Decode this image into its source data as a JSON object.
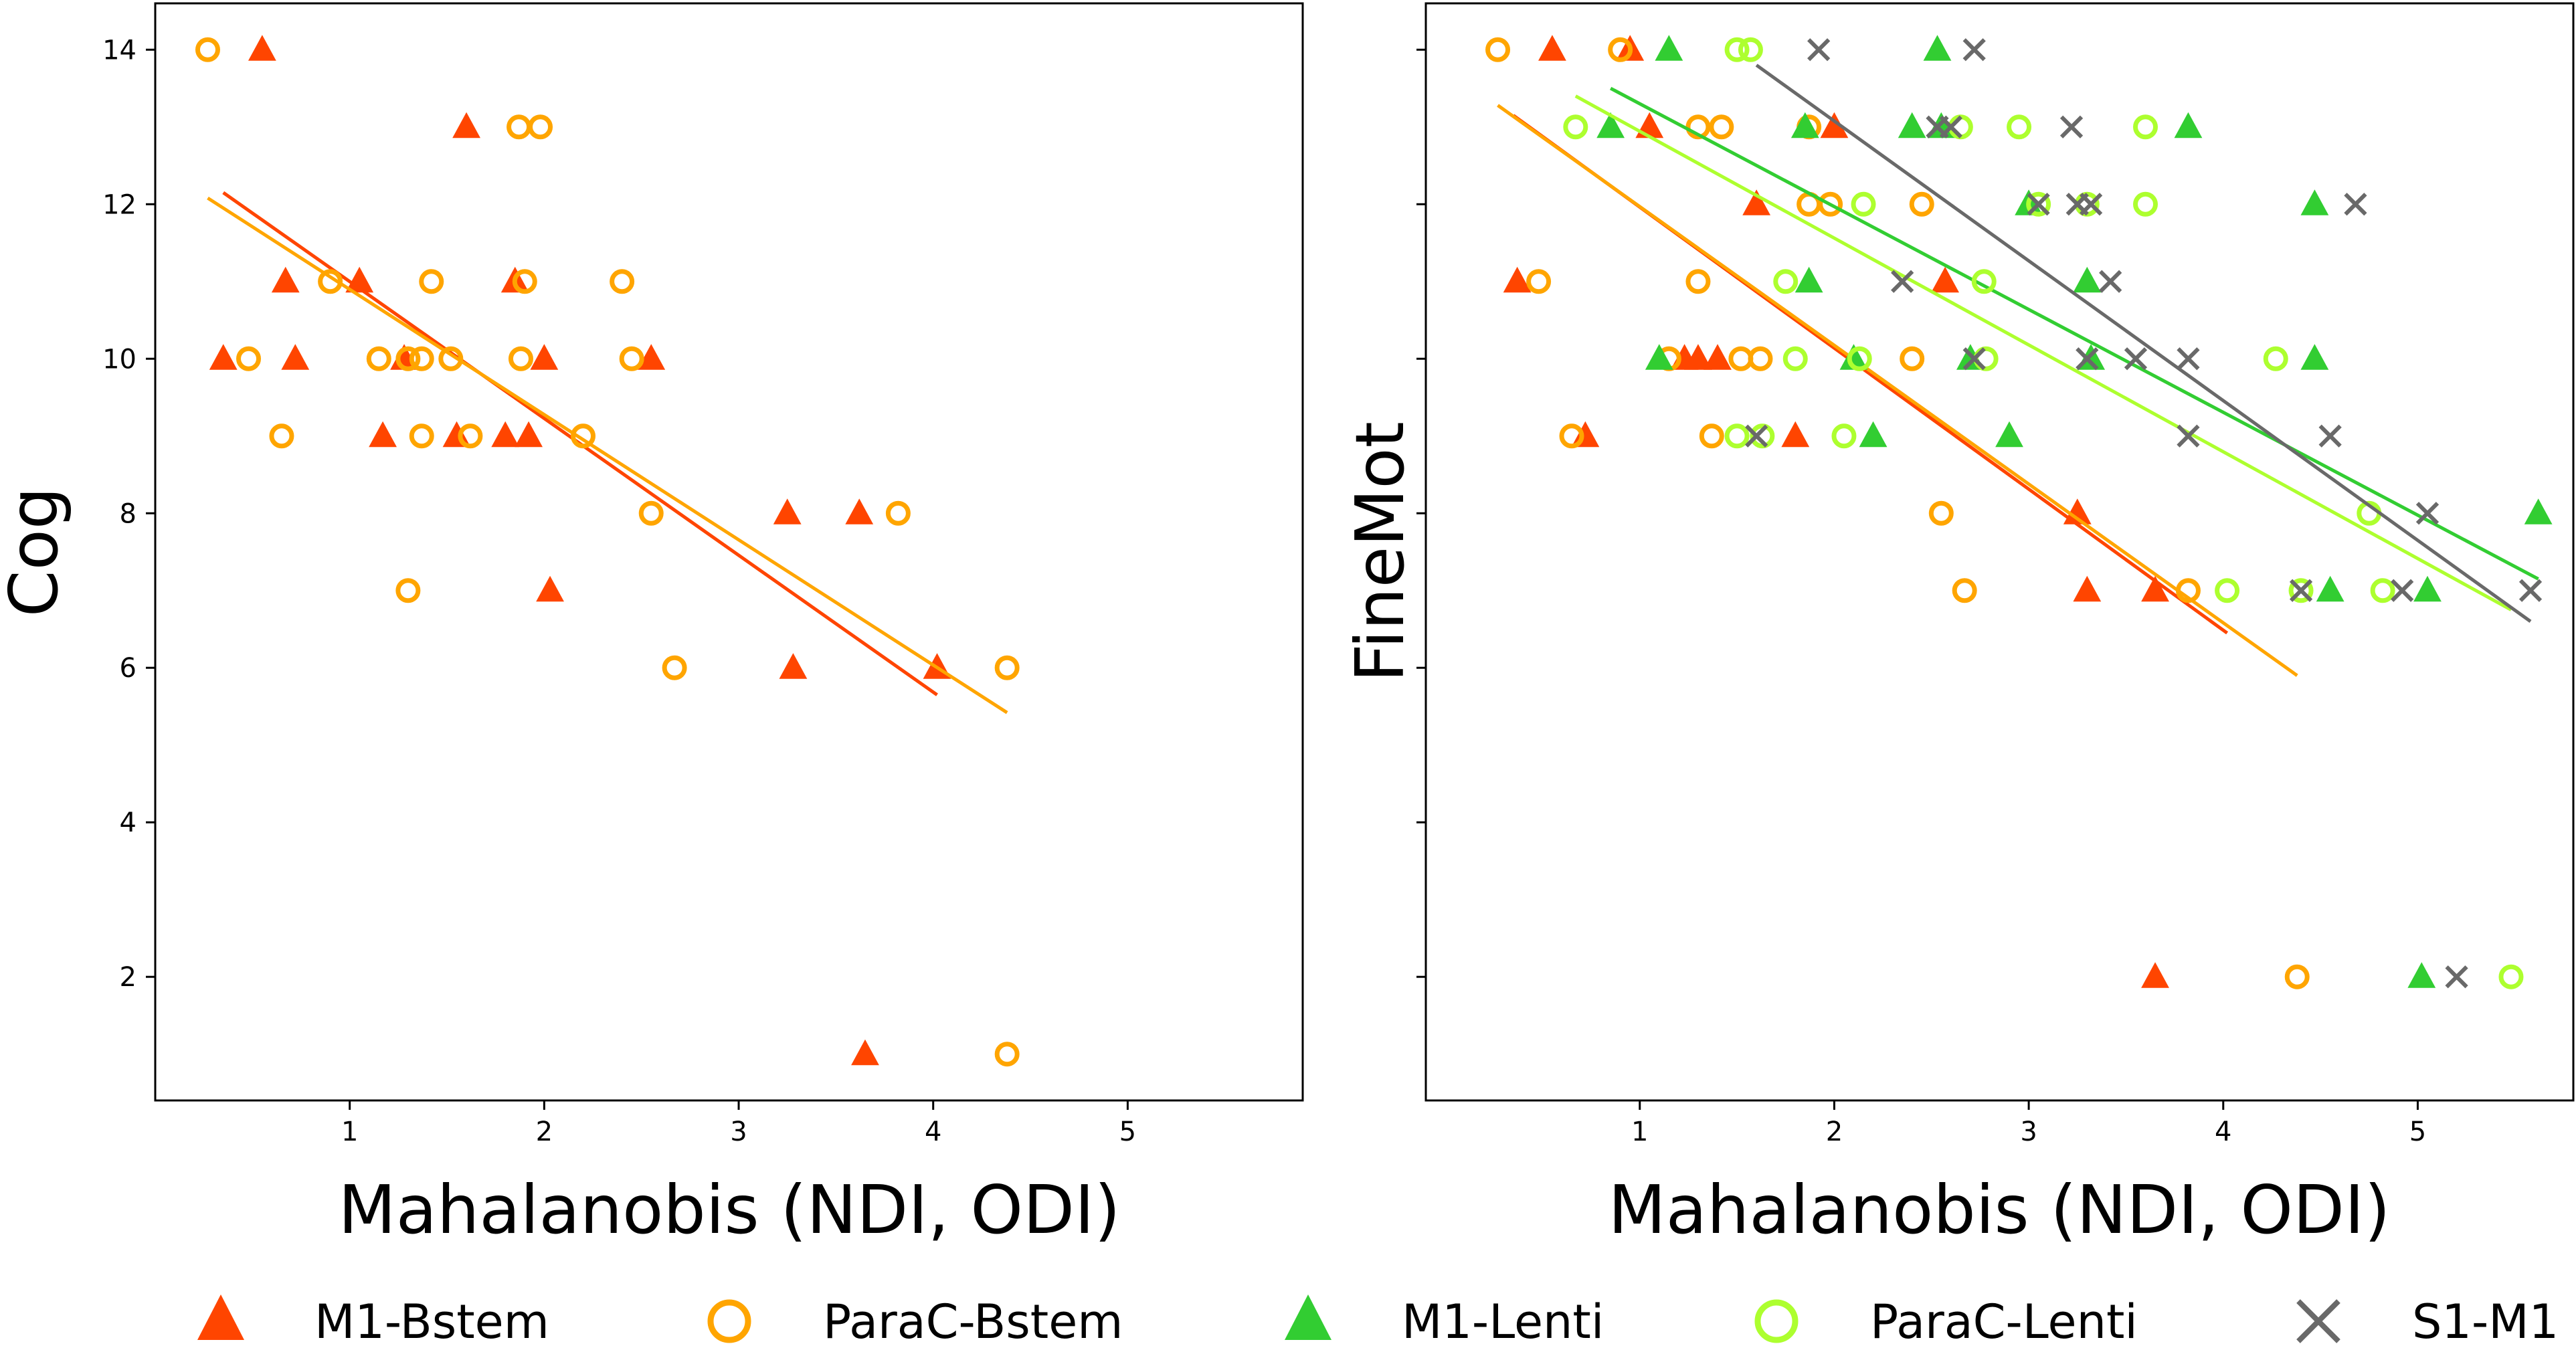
{
  "chart_data": [
    {
      "type": "scatter",
      "panel": "left",
      "xlabel": "Mahalanobis (NDI, ODI)",
      "ylabel": "Cog",
      "xlim": [
        0,
        5.9
      ],
      "ylim": [
        0.4,
        14.6
      ],
      "xticks": [
        1,
        2,
        3,
        4,
        5
      ],
      "yticks": [
        2,
        4,
        6,
        8,
        10,
        12,
        14
      ],
      "yticks_labeled": true,
      "grid": false,
      "series": [
        {
          "name": "M1-Bstem",
          "marker": "triangle",
          "color": "#ff4500",
          "points": [
            [
              0.55,
              14
            ],
            [
              1.6,
              13
            ],
            [
              0.67,
              11
            ],
            [
              1.05,
              11
            ],
            [
              1.85,
              11
            ],
            [
              0.35,
              10
            ],
            [
              0.72,
              10
            ],
            [
              1.28,
              10
            ],
            [
              2.0,
              10
            ],
            [
              2.55,
              10
            ],
            [
              1.17,
              9
            ],
            [
              1.55,
              9
            ],
            [
              1.8,
              9
            ],
            [
              1.92,
              9
            ],
            [
              3.25,
              8
            ],
            [
              3.62,
              8
            ],
            [
              2.03,
              7
            ],
            [
              3.28,
              6
            ],
            [
              4.02,
              6
            ],
            [
              3.65,
              1
            ]
          ],
          "fit": [
            [
              0.35,
              12.15
            ],
            [
              4.02,
              5.65
            ]
          ]
        },
        {
          "name": "ParaC-Bstem",
          "marker": "circle",
          "color": "#ffa500",
          "points": [
            [
              0.27,
              14
            ],
            [
              1.87,
              13
            ],
            [
              1.98,
              13
            ],
            [
              0.9,
              11
            ],
            [
              1.42,
              11
            ],
            [
              1.9,
              11
            ],
            [
              2.4,
              11
            ],
            [
              0.48,
              10
            ],
            [
              1.15,
              10
            ],
            [
              1.3,
              10
            ],
            [
              1.37,
              10
            ],
            [
              1.52,
              10
            ],
            [
              1.88,
              10
            ],
            [
              2.45,
              10
            ],
            [
              0.65,
              9
            ],
            [
              1.37,
              9
            ],
            [
              1.62,
              9
            ],
            [
              2.2,
              9
            ],
            [
              2.55,
              8
            ],
            [
              3.82,
              8
            ],
            [
              1.3,
              7
            ],
            [
              2.67,
              6
            ],
            [
              4.38,
              6
            ],
            [
              4.38,
              1
            ]
          ],
          "fit": [
            [
              0.27,
              12.08
            ],
            [
              4.38,
              5.42
            ]
          ]
        }
      ]
    },
    {
      "type": "scatter",
      "panel": "right",
      "xlabel": "Mahalanobis (NDI, ODI)",
      "ylabel": "FineMot",
      "xlim": [
        -0.1,
        5.8
      ],
      "ylim": [
        0.4,
        14.6
      ],
      "xticks": [
        1,
        2,
        3,
        4,
        5
      ],
      "yticks": [
        2,
        4,
        6,
        8,
        10,
        12,
        14
      ],
      "yticks_labeled": false,
      "grid": false,
      "series": [
        {
          "name": "M1-Bstem",
          "marker": "triangle",
          "color": "#ff4500",
          "points": [
            [
              0.55,
              14
            ],
            [
              0.95,
              14
            ],
            [
              1.05,
              13
            ],
            [
              2.0,
              13
            ],
            [
              1.6,
              12
            ],
            [
              0.37,
              11
            ],
            [
              1.23,
              10
            ],
            [
              1.3,
              10
            ],
            [
              1.4,
              10
            ],
            [
              1.8,
              9
            ],
            [
              0.72,
              9
            ],
            [
              2.57,
              11
            ],
            [
              3.25,
              8
            ],
            [
              3.3,
              7
            ],
            [
              3.65,
              7
            ],
            [
              3.65,
              2
            ]
          ],
          "fit": [
            [
              0.35,
              13.15
            ],
            [
              4.02,
              6.45
            ]
          ]
        },
        {
          "name": "ParaC-Bstem",
          "marker": "circle",
          "color": "#ffa500",
          "points": [
            [
              0.27,
              14
            ],
            [
              0.9,
              14
            ],
            [
              1.3,
              13
            ],
            [
              1.42,
              13
            ],
            [
              1.87,
              13
            ],
            [
              1.87,
              12
            ],
            [
              1.98,
              12
            ],
            [
              2.45,
              12
            ],
            [
              0.48,
              11
            ],
            [
              1.3,
              11
            ],
            [
              1.15,
              10
            ],
            [
              1.52,
              10
            ],
            [
              1.62,
              10
            ],
            [
              2.4,
              10
            ],
            [
              0.65,
              9
            ],
            [
              1.37,
              9
            ],
            [
              2.55,
              8
            ],
            [
              2.67,
              7
            ],
            [
              3.82,
              7
            ],
            [
              4.38,
              2
            ]
          ],
          "fit": [
            [
              0.27,
              13.28
            ],
            [
              4.38,
              5.9
            ]
          ]
        },
        {
          "name": "M1-Lenti",
          "marker": "triangle",
          "color": "#32cd32",
          "points": [
            [
              1.15,
              14
            ],
            [
              2.53,
              14
            ],
            [
              0.85,
              13
            ],
            [
              1.85,
              13
            ],
            [
              2.4,
              13
            ],
            [
              2.55,
              13
            ],
            [
              3.82,
              13
            ],
            [
              3.0,
              12
            ],
            [
              4.47,
              12
            ],
            [
              1.87,
              11
            ],
            [
              3.3,
              11
            ],
            [
              1.1,
              10
            ],
            [
              2.1,
              10
            ],
            [
              2.7,
              10
            ],
            [
              3.32,
              10
            ],
            [
              4.47,
              10
            ],
            [
              2.2,
              9
            ],
            [
              2.9,
              9
            ],
            [
              5.62,
              8
            ],
            [
              4.55,
              7
            ],
            [
              5.05,
              7
            ],
            [
              5.02,
              2
            ]
          ],
          "fit": [
            [
              0.85,
              13.5
            ],
            [
              5.62,
              7.15
            ]
          ]
        },
        {
          "name": "ParaC-Lenti",
          "marker": "circle",
          "color": "#adff2f",
          "points": [
            [
              1.5,
              14
            ],
            [
              1.57,
              14
            ],
            [
              0.67,
              13
            ],
            [
              2.65,
              13
            ],
            [
              2.95,
              13
            ],
            [
              3.6,
              13
            ],
            [
              2.15,
              12
            ],
            [
              3.05,
              12
            ],
            [
              3.3,
              12
            ],
            [
              3.6,
              12
            ],
            [
              1.75,
              11
            ],
            [
              2.77,
              11
            ],
            [
              1.8,
              10
            ],
            [
              2.13,
              10
            ],
            [
              2.78,
              10
            ],
            [
              4.27,
              10
            ],
            [
              1.5,
              9
            ],
            [
              1.63,
              9
            ],
            [
              2.05,
              9
            ],
            [
              4.75,
              8
            ],
            [
              4.02,
              7
            ],
            [
              4.4,
              7
            ],
            [
              4.82,
              7
            ],
            [
              5.48,
              2
            ]
          ],
          "fit": [
            [
              0.67,
              13.4
            ],
            [
              5.48,
              6.75
            ]
          ]
        },
        {
          "name": "S1-M1",
          "marker": "x",
          "color": "#696969",
          "points": [
            [
              1.92,
              14
            ],
            [
              2.72,
              14
            ],
            [
              2.53,
              13
            ],
            [
              2.6,
              13
            ],
            [
              3.22,
              13
            ],
            [
              3.25,
              12
            ],
            [
              3.32,
              12
            ],
            [
              4.68,
              12
            ],
            [
              3.05,
              12
            ],
            [
              2.35,
              11
            ],
            [
              3.42,
              11
            ],
            [
              3.3,
              10
            ],
            [
              3.55,
              10
            ],
            [
              3.82,
              10
            ],
            [
              2.72,
              10
            ],
            [
              1.6,
              9
            ],
            [
              3.82,
              9
            ],
            [
              4.55,
              9
            ],
            [
              5.05,
              8
            ],
            [
              4.4,
              7
            ],
            [
              4.92,
              7
            ],
            [
              5.58,
              7
            ],
            [
              5.2,
              2
            ]
          ],
          "fit": [
            [
              1.6,
              13.8
            ],
            [
              5.58,
              6.6
            ]
          ]
        }
      ]
    }
  ],
  "legend": {
    "placement": "bottom",
    "items": [
      {
        "label": "M1-Bstem",
        "marker": "triangle",
        "color": "#ff4500"
      },
      {
        "label": "ParaC-Bstem",
        "marker": "circle",
        "color": "#ffa500"
      },
      {
        "label": "M1-Lenti",
        "marker": "triangle",
        "color": "#32cd32"
      },
      {
        "label": "ParaC-Lenti",
        "marker": "circle",
        "color": "#adff2f"
      },
      {
        "label": "S1-M1",
        "marker": "x",
        "color": "#696969"
      }
    ]
  }
}
